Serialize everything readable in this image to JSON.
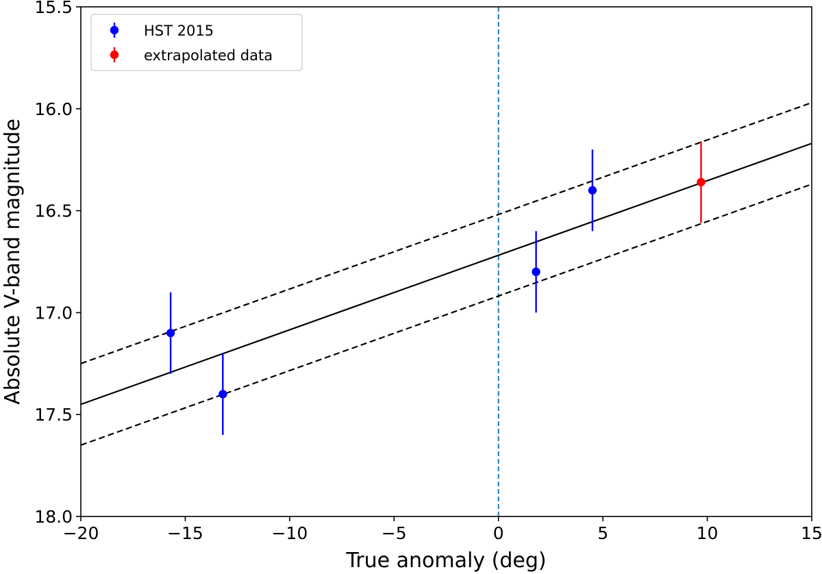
{
  "chart_data": {
    "type": "scatter",
    "title": "",
    "xlabel": "True anomaly (deg)",
    "ylabel": "Absolute V-band magnitude",
    "xlim": [
      -20,
      15
    ],
    "ylim": [
      15.5,
      18.0
    ],
    "y_inverted": true,
    "grid": false,
    "legend_position": "top-left",
    "x_ticks": [
      -20,
      -15,
      -10,
      -5,
      0,
      5,
      10,
      15
    ],
    "x_tick_labels": [
      "−20",
      "−15",
      "−10",
      "−5",
      "0",
      "5",
      "10",
      "15"
    ],
    "y_ticks": [
      15.5,
      16.0,
      16.5,
      17.0,
      17.5,
      18.0
    ],
    "y_tick_labels": [
      "15.5",
      "16.0",
      "16.5",
      "17.0",
      "17.5",
      "18.0"
    ],
    "series": [
      {
        "name": "HST 2015",
        "color": "#0000ff",
        "points": [
          {
            "x": -15.7,
            "y": 17.1,
            "yerr": 0.2
          },
          {
            "x": -13.2,
            "y": 17.4,
            "yerr": 0.2
          },
          {
            "x": 1.8,
            "y": 16.8,
            "yerr": 0.2
          },
          {
            "x": 4.5,
            "y": 16.4,
            "yerr": 0.2
          }
        ]
      },
      {
        "name": "extrapolated data",
        "color": "#ff0000",
        "points": [
          {
            "x": 9.7,
            "y": 16.36,
            "yerr": 0.2
          }
        ]
      }
    ],
    "fit_lines": [
      {
        "style": "solid",
        "color": "#000000",
        "x": [
          -20,
          15
        ],
        "y": [
          17.45,
          16.17
        ]
      },
      {
        "style": "dashed",
        "color": "#000000",
        "x": [
          -20,
          15
        ],
        "y": [
          17.25,
          15.97
        ]
      },
      {
        "style": "dashed",
        "color": "#000000",
        "x": [
          -20,
          15
        ],
        "y": [
          17.65,
          16.37
        ]
      }
    ],
    "vlines": [
      {
        "x": 0,
        "style": "dashed",
        "color": "#1f77b4"
      }
    ]
  }
}
